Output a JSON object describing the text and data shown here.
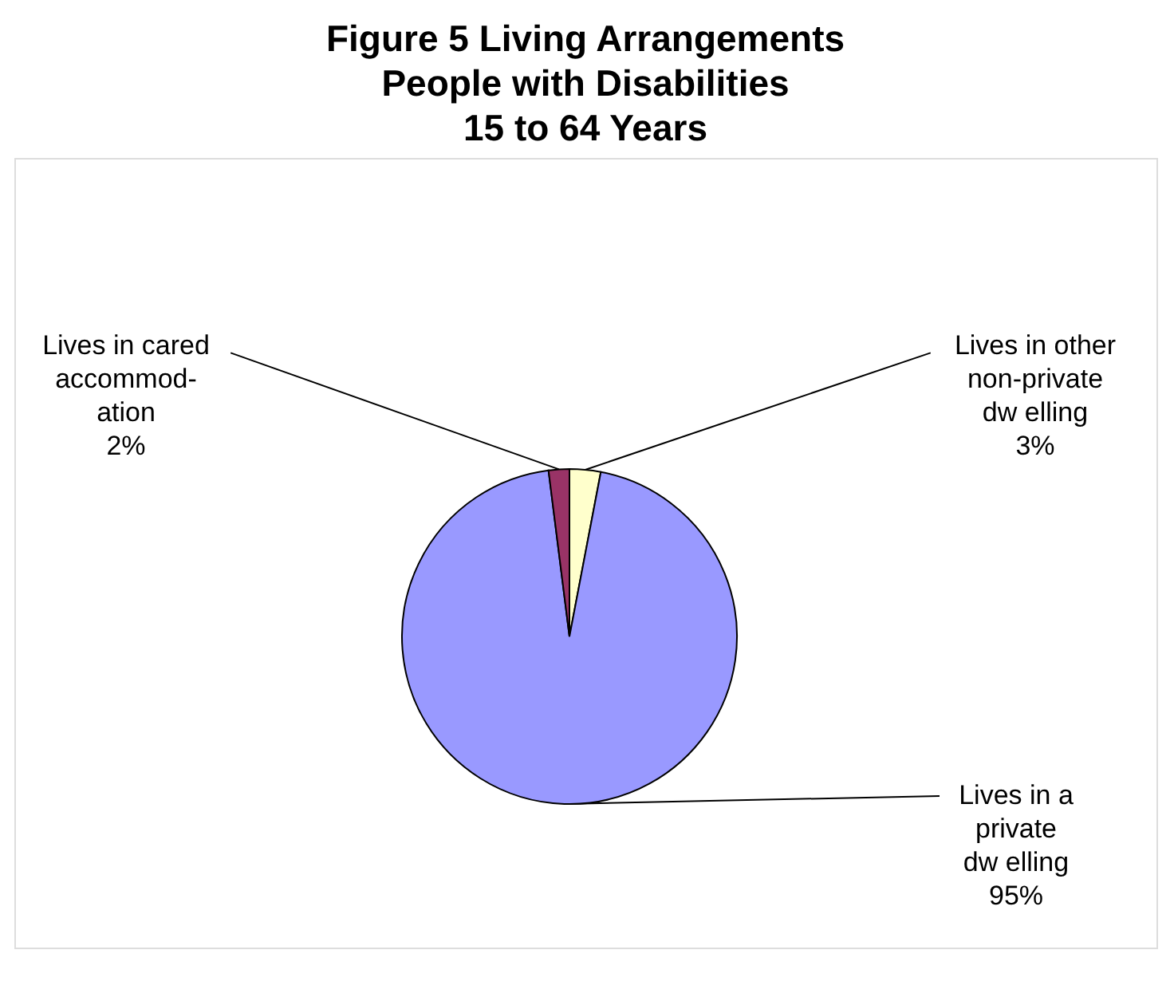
{
  "chart_data": {
    "type": "pie",
    "title": "Figure 5  Living Arrangements\nPeople with Disabilities\n15 to 64 Years",
    "categories": [
      "Lives in other\nnon-private\ndw elling",
      "Lives in a\nprivate\ndw elling",
      "Lives in cared\naccommod-\nation"
    ],
    "values": [
      3,
      95,
      2
    ],
    "colors": [
      "#ffffcc",
      "#9999ff",
      "#993366"
    ],
    "value_labels": [
      "3%",
      "95%",
      "2%"
    ],
    "legend": false
  }
}
